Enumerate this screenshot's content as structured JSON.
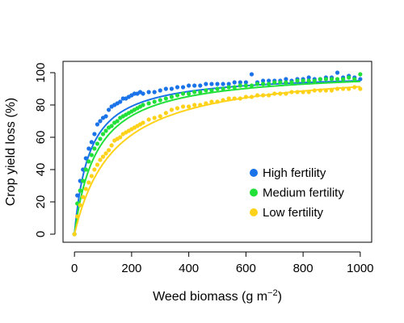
{
  "chart_data": {
    "type": "scatter",
    "xlabel": "Weed biomass (g m",
    "xlabel_sup": "−2",
    "xlabel_end": ")",
    "ylabel": "Crop yield loss (%)",
    "xlim": [
      -40,
      1040
    ],
    "ylim": [
      -5,
      107
    ],
    "xticks": [
      0,
      200,
      400,
      600,
      800,
      1000
    ],
    "yticks": [
      0,
      20,
      40,
      60,
      80,
      100
    ],
    "grid": false,
    "legend_position": "bottom-right",
    "series": [
      {
        "name": "High fertility",
        "color": "#1a73e8",
        "fit": {
          "model": "rectangular-hyperbola",
          "I": 1.9,
          "A": 100
        },
        "points": [
          [
            0,
            0
          ],
          [
            10,
            24
          ],
          [
            20,
            33
          ],
          [
            30,
            40
          ],
          [
            40,
            47
          ],
          [
            50,
            53
          ],
          [
            60,
            57
          ],
          [
            70,
            62
          ],
          [
            80,
            68
          ],
          [
            90,
            70
          ],
          [
            100,
            72
          ],
          [
            110,
            73
          ],
          [
            120,
            77
          ],
          [
            130,
            79
          ],
          [
            140,
            80
          ],
          [
            150,
            81
          ],
          [
            160,
            82
          ],
          [
            170,
            84
          ],
          [
            180,
            84
          ],
          [
            190,
            85
          ],
          [
            200,
            86
          ],
          [
            210,
            87
          ],
          [
            220,
            87
          ],
          [
            230,
            88
          ],
          [
            240,
            87
          ],
          [
            260,
            88
          ],
          [
            280,
            88
          ],
          [
            300,
            89
          ],
          [
            320,
            90
          ],
          [
            340,
            90
          ],
          [
            360,
            91
          ],
          [
            380,
            91
          ],
          [
            400,
            92
          ],
          [
            420,
            92
          ],
          [
            440,
            92
          ],
          [
            460,
            93
          ],
          [
            480,
            93
          ],
          [
            500,
            93
          ],
          [
            520,
            93
          ],
          [
            540,
            93
          ],
          [
            560,
            94
          ],
          [
            580,
            94
          ],
          [
            600,
            94
          ],
          [
            620,
            99
          ],
          [
            640,
            94
          ],
          [
            660,
            95
          ],
          [
            680,
            95
          ],
          [
            700,
            95
          ],
          [
            720,
            95
          ],
          [
            740,
            96
          ],
          [
            760,
            95
          ],
          [
            780,
            96
          ],
          [
            800,
            96
          ],
          [
            820,
            97
          ],
          [
            840,
            96
          ],
          [
            860,
            96
          ],
          [
            880,
            97
          ],
          [
            900,
            97
          ],
          [
            920,
            100
          ],
          [
            940,
            97
          ],
          [
            960,
            98
          ],
          [
            980,
            97
          ],
          [
            1000,
            96
          ]
        ]
      },
      {
        "name": "Medium fertility",
        "color": "#22e03a",
        "fit": {
          "model": "rectangular-hyperbola",
          "I": 1.3,
          "A": 102
        },
        "points": [
          [
            0,
            0
          ],
          [
            10,
            19
          ],
          [
            20,
            27
          ],
          [
            30,
            33
          ],
          [
            40,
            40
          ],
          [
            50,
            45
          ],
          [
            60,
            49
          ],
          [
            70,
            53
          ],
          [
            80,
            56
          ],
          [
            90,
            59
          ],
          [
            100,
            62
          ],
          [
            110,
            64
          ],
          [
            120,
            66
          ],
          [
            130,
            67
          ],
          [
            140,
            69
          ],
          [
            150,
            70
          ],
          [
            160,
            72
          ],
          [
            170,
            73
          ],
          [
            180,
            74
          ],
          [
            190,
            75
          ],
          [
            200,
            76
          ],
          [
            210,
            77
          ],
          [
            220,
            78
          ],
          [
            230,
            79
          ],
          [
            240,
            80
          ],
          [
            260,
            81
          ],
          [
            280,
            82
          ],
          [
            300,
            83
          ],
          [
            320,
            84
          ],
          [
            340,
            85
          ],
          [
            360,
            86
          ],
          [
            380,
            87
          ],
          [
            400,
            87
          ],
          [
            420,
            88
          ],
          [
            440,
            88
          ],
          [
            460,
            89
          ],
          [
            480,
            89
          ],
          [
            500,
            90
          ],
          [
            520,
            90
          ],
          [
            540,
            91
          ],
          [
            560,
            91
          ],
          [
            580,
            92
          ],
          [
            600,
            92
          ],
          [
            620,
            92
          ],
          [
            640,
            93
          ],
          [
            660,
            93
          ],
          [
            680,
            93
          ],
          [
            700,
            94
          ],
          [
            720,
            94
          ],
          [
            740,
            94
          ],
          [
            760,
            94
          ],
          [
            780,
            95
          ],
          [
            800,
            95
          ],
          [
            820,
            95
          ],
          [
            840,
            95
          ],
          [
            860,
            96
          ],
          [
            880,
            96
          ],
          [
            900,
            96
          ],
          [
            920,
            96
          ],
          [
            940,
            96
          ],
          [
            960,
            97
          ],
          [
            980,
            96
          ],
          [
            1000,
            99
          ]
        ]
      },
      {
        "name": "Low fertility",
        "color": "#ffd21a",
        "fit": {
          "model": "rectangular-hyperbola",
          "I": 0.75,
          "A": 104
        },
        "points": [
          [
            0,
            0
          ],
          [
            10,
            11
          ],
          [
            20,
            18
          ],
          [
            30,
            23
          ],
          [
            40,
            28
          ],
          [
            50,
            32
          ],
          [
            60,
            36
          ],
          [
            70,
            40
          ],
          [
            80,
            43
          ],
          [
            90,
            46
          ],
          [
            100,
            48
          ],
          [
            110,
            50
          ],
          [
            120,
            52
          ],
          [
            130,
            55
          ],
          [
            140,
            58
          ],
          [
            150,
            59
          ],
          [
            160,
            60
          ],
          [
            170,
            62
          ],
          [
            180,
            63
          ],
          [
            190,
            64
          ],
          [
            200,
            65
          ],
          [
            210,
            66
          ],
          [
            220,
            67
          ],
          [
            230,
            68
          ],
          [
            240,
            69
          ],
          [
            260,
            71
          ],
          [
            280,
            72
          ],
          [
            300,
            73
          ],
          [
            320,
            75
          ],
          [
            340,
            77
          ],
          [
            360,
            78
          ],
          [
            380,
            79
          ],
          [
            400,
            79
          ],
          [
            420,
            80
          ],
          [
            440,
            80
          ],
          [
            460,
            81
          ],
          [
            480,
            82
          ],
          [
            500,
            82
          ],
          [
            520,
            83
          ],
          [
            540,
            84
          ],
          [
            560,
            84
          ],
          [
            580,
            84
          ],
          [
            600,
            85
          ],
          [
            620,
            85
          ],
          [
            640,
            86
          ],
          [
            660,
            86
          ],
          [
            680,
            86
          ],
          [
            700,
            87
          ],
          [
            720,
            87
          ],
          [
            740,
            87
          ],
          [
            760,
            88
          ],
          [
            780,
            88
          ],
          [
            800,
            88
          ],
          [
            820,
            88
          ],
          [
            840,
            89
          ],
          [
            860,
            89
          ],
          [
            880,
            89
          ],
          [
            900,
            89
          ],
          [
            920,
            90
          ],
          [
            940,
            90
          ],
          [
            960,
            90
          ],
          [
            980,
            91
          ],
          [
            1000,
            90
          ]
        ]
      }
    ]
  }
}
